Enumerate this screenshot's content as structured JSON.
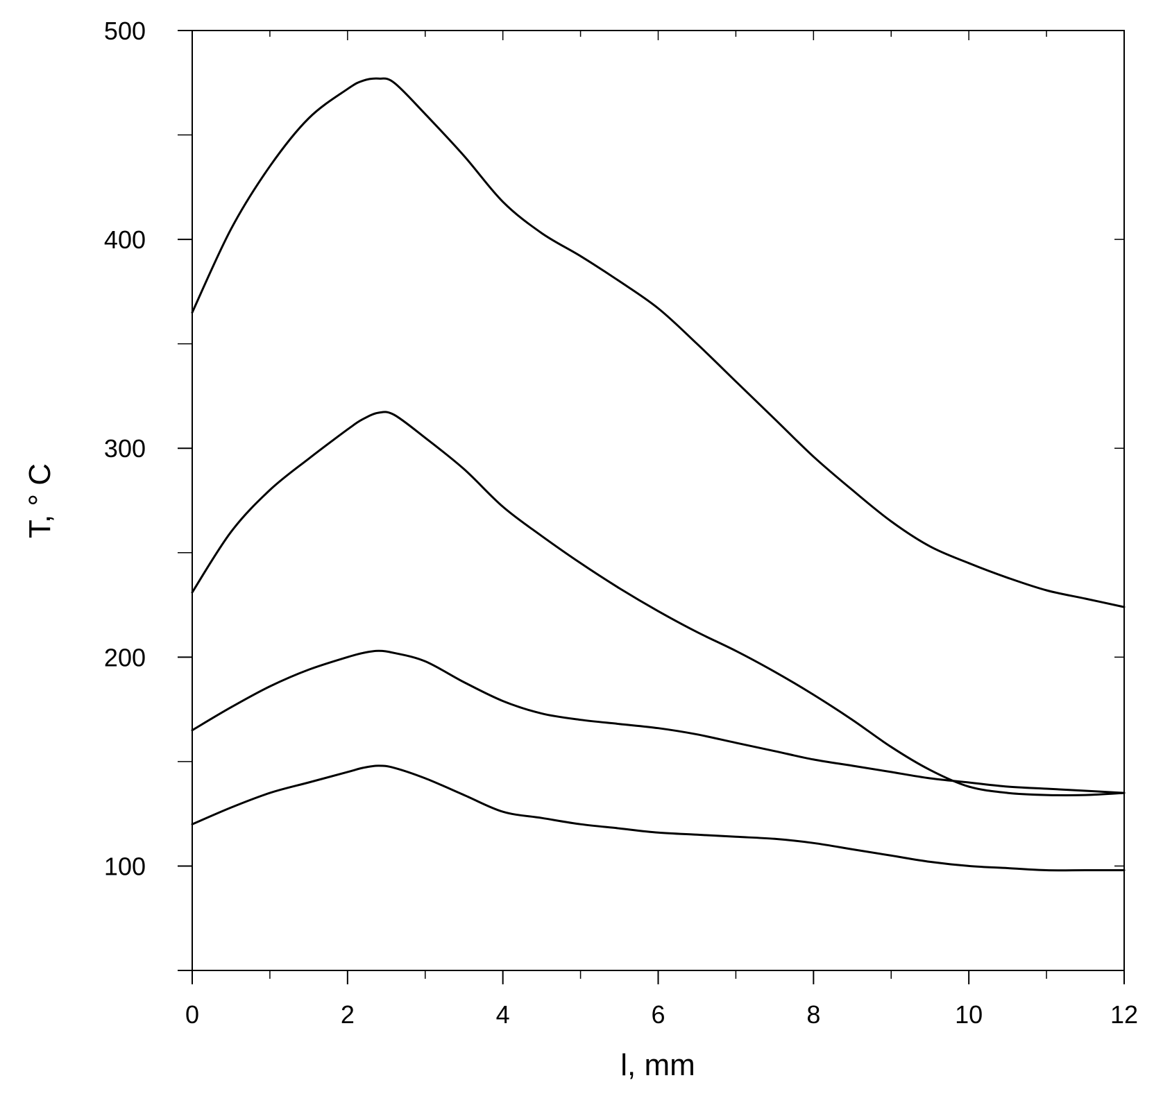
{
  "chart_data": {
    "type": "line",
    "title": "",
    "xlabel": "l, mm",
    "ylabel": "T, ° C",
    "xlim": [
      0,
      12
    ],
    "ylim": [
      50,
      500
    ],
    "x_ticks": [
      0,
      2,
      4,
      6,
      8,
      10,
      12
    ],
    "x_tick_labels": [
      "0",
      "2",
      "4",
      "6",
      "8",
      "10",
      "12"
    ],
    "x_minor_ticks": [
      1,
      3,
      5,
      7,
      9,
      11
    ],
    "y_ticks": [
      100,
      200,
      300,
      400,
      500
    ],
    "y_tick_labels": [
      "100",
      "200",
      "300",
      "400",
      "500"
    ],
    "y_minor_ticks": [
      50,
      150,
      250,
      350,
      450
    ],
    "grid": false,
    "line_color": "#000000",
    "series": [
      {
        "x": [
          0,
          0.5,
          1,
          1.5,
          2,
          2.2,
          2.4,
          2.6,
          3,
          3.5,
          4,
          4.5,
          5,
          5.5,
          6,
          6.5,
          7,
          7.5,
          8,
          8.5,
          9,
          9.5,
          10,
          10.5,
          11,
          11.5,
          12
        ],
        "y": [
          365,
          405,
          435,
          458,
          472,
          476,
          477,
          475,
          460,
          440,
          418,
          403,
          392,
          380,
          367,
          350,
          332,
          314,
          296,
          280,
          265,
          253,
          245,
          238,
          232,
          228,
          224
        ]
      },
      {
        "x": [
          0,
          0.5,
          1,
          1.5,
          2,
          2.2,
          2.4,
          2.6,
          3,
          3.5,
          4,
          4.5,
          5,
          5.5,
          6,
          6.5,
          7,
          7.5,
          8,
          8.5,
          9,
          9.5,
          10,
          10.5,
          11,
          11.5,
          12
        ],
        "y": [
          231,
          260,
          280,
          295,
          309,
          314,
          317,
          316,
          305,
          290,
          272,
          258,
          245,
          233,
          222,
          212,
          203,
          193,
          182,
          170,
          157,
          146,
          138,
          135,
          134,
          134,
          135
        ]
      },
      {
        "x": [
          0,
          0.5,
          1,
          1.5,
          2,
          2.2,
          2.4,
          2.6,
          3,
          3.5,
          4,
          4.5,
          5,
          5.5,
          6,
          6.5,
          7,
          7.5,
          8,
          8.5,
          9,
          9.5,
          10,
          10.5,
          11,
          11.5,
          12
        ],
        "y": [
          165,
          176,
          186,
          194,
          200,
          202,
          203,
          202,
          198,
          188,
          179,
          173,
          170,
          168,
          166,
          163,
          159,
          155,
          151,
          148,
          145,
          142,
          140,
          138,
          137,
          136,
          135
        ]
      },
      {
        "x": [
          0,
          0.5,
          1,
          1.5,
          2,
          2.2,
          2.4,
          2.6,
          3,
          3.5,
          4,
          4.5,
          5,
          5.5,
          6,
          6.5,
          7,
          7.5,
          8,
          8.5,
          9,
          9.5,
          10,
          10.5,
          11,
          11.5,
          12
        ],
        "y": [
          120,
          128,
          135,
          140,
          145,
          147,
          148,
          147,
          142,
          134,
          126,
          123,
          120,
          118,
          116,
          115,
          114,
          113,
          111,
          108,
          105,
          102,
          100,
          99,
          98,
          98,
          98
        ]
      }
    ]
  }
}
